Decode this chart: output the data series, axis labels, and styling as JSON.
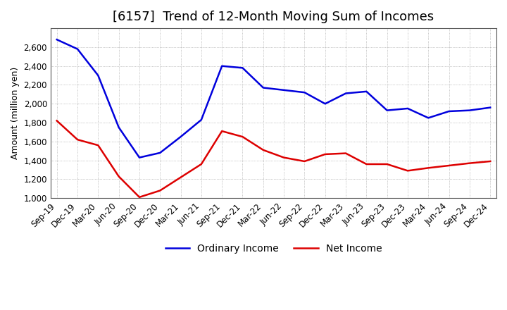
{
  "title": "[6157]  Trend of 12-Month Moving Sum of Incomes",
  "ylabel": "Amount (million yen)",
  "background_color": "#ffffff",
  "grid_color": "#999999",
  "x_labels": [
    "Sep-19",
    "Dec-19",
    "Mar-20",
    "Jun-20",
    "Sep-20",
    "Dec-20",
    "Mar-21",
    "Jun-21",
    "Sep-21",
    "Dec-21",
    "Mar-22",
    "Jun-22",
    "Sep-22",
    "Dec-22",
    "Mar-23",
    "Jun-23",
    "Sep-23",
    "Dec-23",
    "Mar-24",
    "Jun-24",
    "Sep-24",
    "Dec-24"
  ],
  "ordinary_income": [
    2680,
    2580,
    2300,
    1750,
    1430,
    1480,
    1650,
    1830,
    2400,
    2380,
    2170,
    2145,
    2120,
    2000,
    2110,
    2130,
    1930,
    1950,
    1850,
    1920,
    1930,
    1960
  ],
  "net_income": [
    1820,
    1620,
    1560,
    1230,
    1010,
    1080,
    1220,
    1360,
    1710,
    1650,
    1510,
    1430,
    1390,
    1465,
    1475,
    1360,
    1360,
    1290,
    1320,
    1345,
    1370,
    1390
  ],
  "ordinary_color": "#0000dd",
  "net_color": "#dd0000",
  "ylim": [
    1000,
    2800
  ],
  "yticks": [
    1000,
    1200,
    1400,
    1600,
    1800,
    2000,
    2200,
    2400,
    2600
  ],
  "line_width": 1.8,
  "title_fontsize": 13,
  "tick_fontsize": 8.5,
  "ylabel_fontsize": 9,
  "legend_fontsize": 10
}
